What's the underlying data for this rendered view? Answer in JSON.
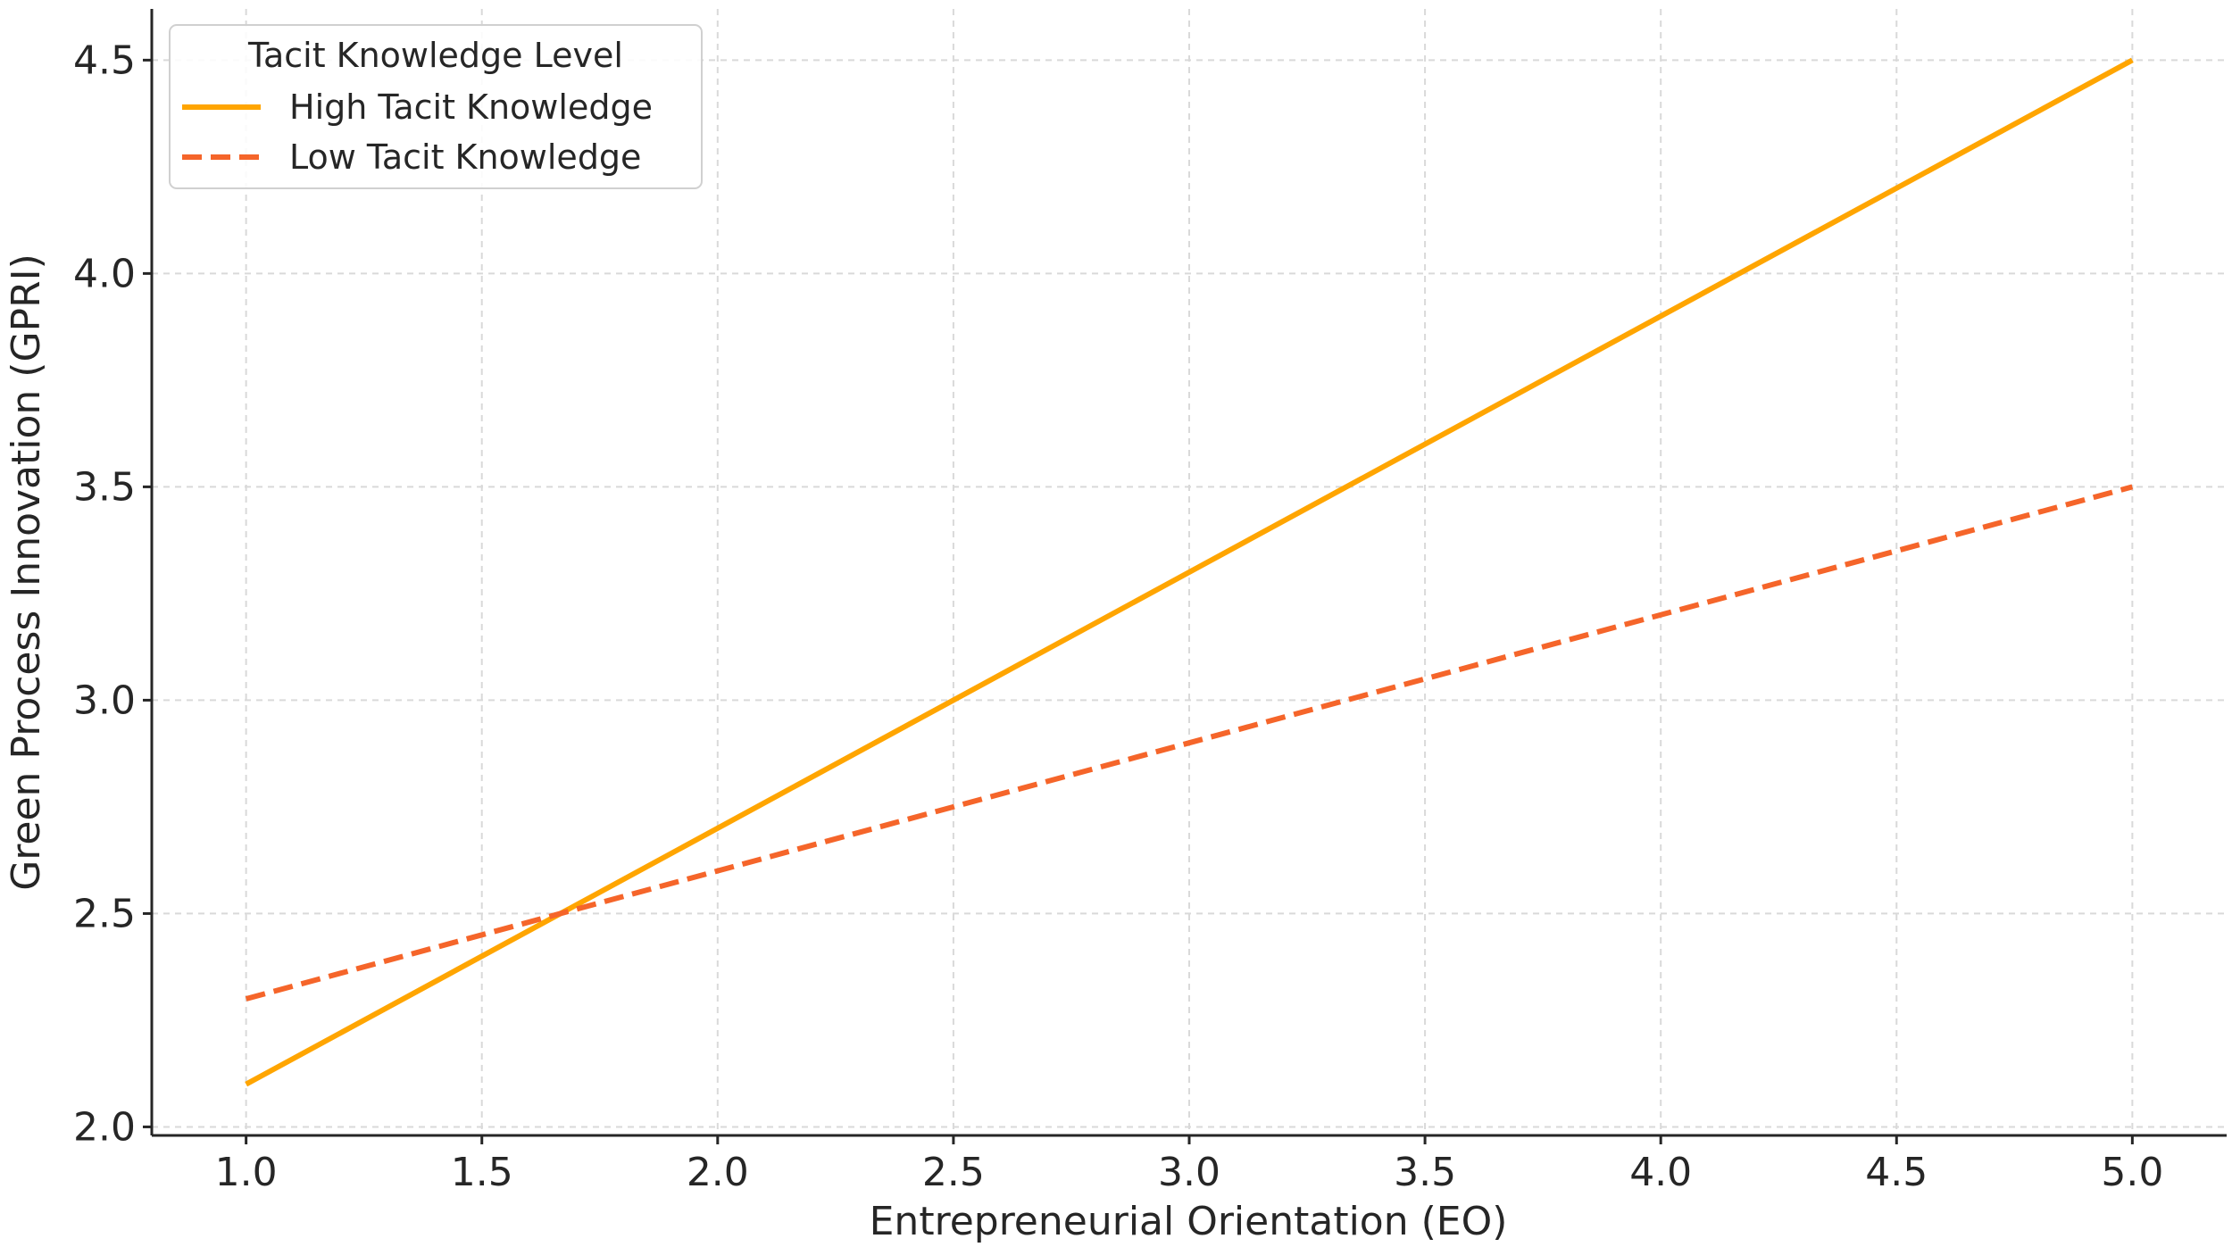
{
  "chart_data": {
    "type": "line",
    "title": "",
    "xlabel": "Entrepreneurial Orientation (EO)",
    "ylabel": "Green Process Innovation (GPRI)",
    "xlim": [
      0.8,
      5.2
    ],
    "ylim": [
      1.98,
      4.62
    ],
    "xticks": [
      1.0,
      1.5,
      2.0,
      2.5,
      3.0,
      3.5,
      4.0,
      4.5,
      5.0
    ],
    "xtick_labels": [
      "1.0",
      "1.5",
      "2.0",
      "2.5",
      "3.0",
      "3.5",
      "4.0",
      "4.5",
      "5.0"
    ],
    "yticks": [
      2.0,
      2.5,
      3.0,
      3.5,
      4.0,
      4.5
    ],
    "ytick_labels": [
      "2.0",
      "2.5",
      "3.0",
      "3.5",
      "4.0",
      "4.5"
    ],
    "grid": true,
    "legend": {
      "title": "Tacit Knowledge Level",
      "placement": "top-left"
    },
    "series": [
      {
        "name": "High Tacit Knowledge",
        "color": "#FFA500",
        "style": "solid",
        "x": [
          1.0,
          5.0
        ],
        "y": [
          2.1,
          4.5
        ]
      },
      {
        "name": "Low Tacit Knowledge",
        "color": "#F5652A",
        "style": "dashed",
        "x": [
          1.0,
          5.0
        ],
        "y": [
          2.3,
          3.5
        ]
      }
    ]
  }
}
